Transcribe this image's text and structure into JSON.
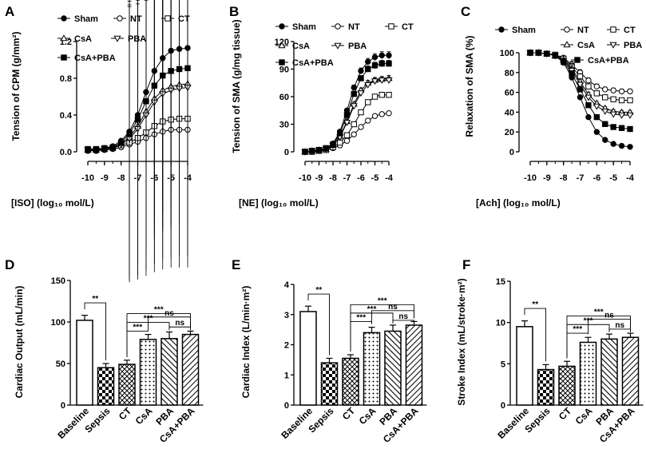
{
  "chart_data": [
    {
      "panel": "A",
      "type": "line",
      "ylabel": "Tension of CPM (g/mm²)",
      "xlabel": "[ISO] (log₁₀ mol/L)",
      "x": [
        -10,
        -9.5,
        -9,
        -8.5,
        -8,
        -7.5,
        -7,
        -6.5,
        -6,
        -5.5,
        -5,
        -4.5,
        -4
      ],
      "xticks": [
        -10,
        -9,
        -8,
        -7,
        -6,
        -5,
        -4
      ],
      "xtick_labels": [
        "-10",
        "-9",
        "-8",
        "-7",
        "-6",
        "-5",
        "-4"
      ],
      "ylim": [
        0,
        1.2
      ],
      "yticks": [
        0,
        0.4,
        0.8,
        1.2
      ],
      "ytick_labels": [
        "0.0",
        "0.4",
        "0.8",
        "1.2"
      ],
      "series": [
        {
          "name": "Sham",
          "values": [
            0.03,
            0.03,
            0.04,
            0.06,
            0.12,
            0.22,
            0.4,
            0.65,
            0.88,
            1.02,
            1.1,
            1.12,
            1.13
          ]
        },
        {
          "name": "NT",
          "values": [
            0.01,
            0.01,
            0.02,
            0.03,
            0.05,
            0.08,
            0.11,
            0.15,
            0.19,
            0.22,
            0.24,
            0.24,
            0.24
          ]
        },
        {
          "name": "CT",
          "values": [
            0.02,
            0.02,
            0.03,
            0.04,
            0.07,
            0.1,
            0.15,
            0.21,
            0.28,
            0.33,
            0.35,
            0.36,
            0.36
          ]
        },
        {
          "name": "CsA",
          "values": [
            0.02,
            0.02,
            0.03,
            0.05,
            0.09,
            0.16,
            0.28,
            0.44,
            0.58,
            0.67,
            0.71,
            0.73,
            0.74
          ]
        },
        {
          "name": "PBA",
          "values": [
            0.02,
            0.02,
            0.03,
            0.04,
            0.08,
            0.14,
            0.25,
            0.4,
            0.54,
            0.63,
            0.67,
            0.69,
            0.7
          ]
        },
        {
          "name": "CsA+PBA",
          "values": [
            0.03,
            0.03,
            0.04,
            0.05,
            0.1,
            0.2,
            0.35,
            0.55,
            0.72,
            0.83,
            0.88,
            0.9,
            0.91
          ]
        }
      ],
      "legend": [
        "Sham",
        "NT",
        "CT",
        "CsA",
        "PBA",
        "CsA+PBA"
      ]
    },
    {
      "panel": "B",
      "type": "line",
      "ylabel": "Tension of SMA (g/mg tissue)",
      "xlabel": "[NE] (log₁₀ mol/L)",
      "x": [
        -10,
        -9.5,
        -9,
        -8.5,
        -8,
        -7.5,
        -7,
        -6.5,
        -6,
        -5.5,
        -5,
        -4.5,
        -4
      ],
      "xticks": [
        -10,
        -9,
        -8,
        -7,
        -6,
        -5,
        -4
      ],
      "xtick_labels": [
        "-10",
        "-9",
        "-8",
        "-7",
        "-6",
        "-5",
        "-4"
      ],
      "ylim": [
        0,
        120
      ],
      "yticks": [
        0,
        30,
        60,
        90,
        120
      ],
      "ytick_labels": [
        "0",
        "30",
        "60",
        "90",
        "120"
      ],
      "series": [
        {
          "name": "Sham",
          "values": [
            0,
            1,
            2,
            4,
            9,
            22,
            45,
            70,
            88,
            98,
            103,
            105,
            105
          ]
        },
        {
          "name": "NT",
          "values": [
            0,
            0,
            1,
            2,
            4,
            7,
            12,
            19,
            27,
            34,
            39,
            41,
            42
          ]
        },
        {
          "name": "CT",
          "values": [
            0,
            0,
            1,
            2,
            5,
            10,
            18,
            30,
            43,
            54,
            60,
            62,
            62
          ]
        },
        {
          "name": "CsA",
          "values": [
            0,
            1,
            2,
            3,
            7,
            17,
            33,
            52,
            67,
            75,
            78,
            79,
            80
          ]
        },
        {
          "name": "PBA",
          "values": [
            0,
            1,
            2,
            3,
            7,
            16,
            32,
            50,
            64,
            73,
            77,
            78,
            78
          ]
        },
        {
          "name": "CsA+PBA",
          "values": [
            0,
            1,
            2,
            4,
            8,
            20,
            40,
            63,
            80,
            90,
            94,
            96,
            96
          ]
        }
      ],
      "legend": [
        "Sham",
        "NT",
        "CT",
        "CsA",
        "PBA",
        "CsA+PBA"
      ]
    },
    {
      "panel": "C",
      "type": "line",
      "ylabel": "Relaxation of SMA (%)",
      "xlabel": "[Ach] (log₁₀ mol/L)",
      "x": [
        -10,
        -9.5,
        -9,
        -8.5,
        -8,
        -7.5,
        -7,
        -6.5,
        -6,
        -5.5,
        -5,
        -4.5,
        -4
      ],
      "xticks": [
        -10,
        -9,
        -8,
        -7,
        -6,
        -5,
        -4
      ],
      "xtick_labels": [
        "-10",
        "-9",
        "-8",
        "-7",
        "-6",
        "-5",
        "-4"
      ],
      "ylim": [
        0,
        100
      ],
      "yticks": [
        0,
        20,
        40,
        60,
        80,
        100
      ],
      "ytick_labels": [
        "0",
        "20",
        "40",
        "60",
        "80",
        "100"
      ],
      "series": [
        {
          "name": "Sham",
          "values": [
            100,
            100,
            99,
            97,
            90,
            75,
            55,
            35,
            20,
            12,
            8,
            6,
            5
          ]
        },
        {
          "name": "NT",
          "values": [
            100,
            100,
            99,
            98,
            95,
            88,
            80,
            72,
            66,
            63,
            62,
            61,
            61
          ]
        },
        {
          "name": "CT",
          "values": [
            100,
            100,
            99,
            98,
            94,
            86,
            76,
            66,
            59,
            55,
            53,
            52,
            52
          ]
        },
        {
          "name": "CsA",
          "values": [
            100,
            100,
            99,
            97,
            93,
            84,
            71,
            58,
            49,
            44,
            41,
            40,
            40
          ]
        },
        {
          "name": "PBA",
          "values": [
            100,
            100,
            99,
            97,
            92,
            82,
            68,
            55,
            46,
            41,
            38,
            37,
            37
          ]
        },
        {
          "name": "CsA+PBA",
          "values": [
            100,
            100,
            99,
            97,
            91,
            79,
            63,
            47,
            35,
            28,
            25,
            24,
            23
          ]
        }
      ],
      "legend": [
        "Sham",
        "NT",
        "CT",
        "CsA",
        "PBA",
        "CsA+PBA"
      ]
    },
    {
      "panel": "D",
      "type": "bar",
      "ylabel": "Cardiac Output (mL/min)",
      "categories": [
        "Baseline",
        "Sepsis",
        "CT",
        "CsA",
        "PBA",
        "CsA+PBA"
      ],
      "values": [
        102,
        45,
        49,
        79,
        80,
        85
      ],
      "errors": [
        6,
        5,
        5,
        6,
        8,
        4
      ],
      "ylim": [
        0,
        150
      ],
      "yticks": [
        0,
        50,
        100,
        150
      ],
      "ytick_labels": [
        "0",
        "50",
        "100",
        "150"
      ],
      "annotations": [
        "**",
        "***",
        "***",
        "***",
        "ns",
        "ns"
      ]
    },
    {
      "panel": "E",
      "type": "bar",
      "ylabel": "Cardiac Index (L/min·m²)",
      "categories": [
        "Baseline",
        "Sepsis",
        "CT",
        "CsA",
        "PBA",
        "CsA+PBA"
      ],
      "values": [
        3.1,
        1.4,
        1.55,
        2.4,
        2.45,
        2.65
      ],
      "errors": [
        0.18,
        0.15,
        0.12,
        0.18,
        0.2,
        0.12
      ],
      "ylim": [
        0,
        4
      ],
      "yticks": [
        0,
        1,
        2,
        3,
        4
      ],
      "ytick_labels": [
        "0",
        "1",
        "2",
        "3",
        "4"
      ],
      "annotations": [
        "**",
        "***",
        "***",
        "***",
        "ns",
        "ns"
      ]
    },
    {
      "panel": "F",
      "type": "bar",
      "ylabel": "Stroke Index (mL/stroke·m²)",
      "categories": [
        "Baseline",
        "Sepsis",
        "CT",
        "CsA",
        "PBA",
        "CsA+PBA"
      ],
      "values": [
        9.5,
        4.3,
        4.7,
        7.6,
        8.0,
        8.2
      ],
      "errors": [
        0.7,
        0.6,
        0.6,
        0.6,
        0.6,
        0.5
      ],
      "ylim": [
        0,
        15
      ],
      "yticks": [
        0,
        5,
        10,
        15
      ],
      "ytick_labels": [
        "0",
        "5",
        "10",
        "15"
      ],
      "annotations": [
        "**",
        "***",
        "***",
        "***",
        "ns",
        "ns"
      ]
    }
  ]
}
